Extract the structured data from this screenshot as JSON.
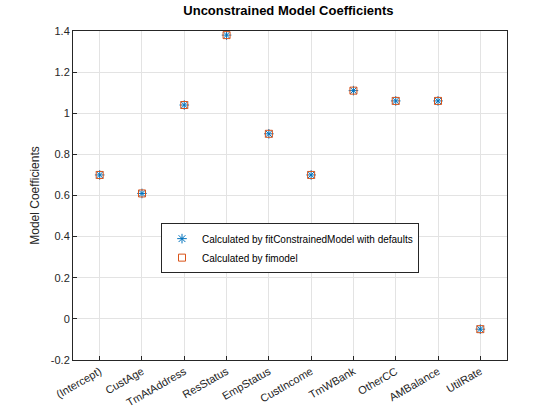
{
  "chart_data": {
    "type": "scatter",
    "title": "Unconstrained Model Coefficients",
    "y_label": "Model Coefficients",
    "categories": [
      "(Intercept)",
      "CustAge",
      "TmAtAddress",
      "ResStatus",
      "EmpStatus",
      "CustIncome",
      "TmWBank",
      "OtherCC",
      "AMBalance",
      "UtilRate"
    ],
    "series": [
      {
        "name": "Calculated by fitConstrainedModel with defaults",
        "color": "#0072BD",
        "marker": "asterisk",
        "values": [
          0.7,
          0.61,
          1.04,
          1.38,
          0.9,
          0.7,
          1.11,
          1.06,
          1.06,
          -0.05
        ]
      },
      {
        "name": "Calculated by fimodel",
        "color": "#D95319",
        "marker": "square",
        "values": [
          0.7,
          0.61,
          1.04,
          1.38,
          0.9,
          0.7,
          1.11,
          1.06,
          1.06,
          -0.05
        ]
      }
    ],
    "ylim": [
      -0.2,
      1.4
    ],
    "yticks": [
      -0.2,
      0,
      0.2,
      0.4,
      0.6,
      0.8,
      1,
      1.2,
      1.4
    ],
    "grid": true,
    "legend": "center"
  }
}
